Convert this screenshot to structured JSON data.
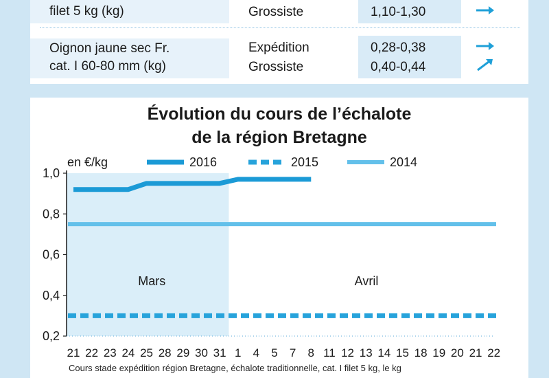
{
  "table": {
    "rows": [
      {
        "label_lines": [
          "filet 5 kg (kg)"
        ],
        "stades": [
          "Grossiste"
        ],
        "prices": [
          "1,10-1,30"
        ],
        "trends": [
          "stable-arrow-icon"
        ]
      },
      {
        "label_lines": [
          "Oignon jaune sec Fr.",
          "cat. I 60-80 mm (kg)"
        ],
        "stades": [
          "Expédition",
          "Grossiste"
        ],
        "prices": [
          "0,28-0,38",
          "0,40-0,44"
        ],
        "trends": [
          "stable-arrow-icon",
          "up-arrow-icon"
        ]
      }
    ]
  },
  "chart": {
    "title_line1": "Évolution du cours de l’échalote",
    "title_line2": "de la région Bretagne",
    "unit_label": "en €/kg",
    "caption": "Cours stade expédition région Bretagne, échalote traditionnelle, cat. I filet 5 kg, le kg",
    "month_labels": [
      "Mars",
      "Avril"
    ]
  },
  "chart_data": {
    "type": "line",
    "title": "Évolution du cours de l’échalote de la région Bretagne",
    "ylabel": "en €/kg",
    "ylim": [
      0.2,
      1.0
    ],
    "yticks": [
      "0,2",
      "0,4",
      "0,6",
      "0,8",
      "1,0"
    ],
    "ytick_values": [
      0.2,
      0.4,
      0.6,
      0.8,
      1.0
    ],
    "categories": [
      "21",
      "22",
      "23",
      "24",
      "25",
      "28",
      "29",
      "30",
      "31",
      "1",
      "4",
      "5",
      "7",
      "8",
      "11",
      "12",
      "13",
      "14",
      "15",
      "18",
      "19",
      "20",
      "21",
      "22"
    ],
    "legend_position": "top",
    "colors": {
      "2016": "#1b9ad6",
      "2015": "#27a3db",
      "2014": "#63c0ea",
      "shade": "#daeef9"
    },
    "series": [
      {
        "name": "2016",
        "style": "solid-thick",
        "values": [
          0.92,
          0.92,
          0.92,
          0.92,
          0.95,
          0.95,
          0.95,
          0.95,
          0.95,
          0.97,
          0.97,
          0.97,
          0.97,
          0.97,
          null,
          null,
          null,
          null,
          null,
          null,
          null,
          null,
          null,
          null
        ]
      },
      {
        "name": "2015",
        "style": "dashed",
        "values": [
          0.3,
          0.3,
          0.3,
          0.3,
          0.3,
          0.3,
          0.3,
          0.3,
          0.3,
          0.3,
          0.3,
          0.3,
          0.3,
          0.3,
          0.3,
          0.3,
          0.3,
          0.3,
          0.3,
          0.3,
          0.3,
          0.3,
          0.3,
          0.3
        ]
      },
      {
        "name": "2014",
        "style": "solid",
        "values": [
          0.75,
          0.75,
          0.75,
          0.75,
          0.75,
          0.75,
          0.75,
          0.75,
          0.75,
          0.75,
          0.75,
          0.75,
          0.75,
          0.75,
          0.75,
          0.75,
          0.75,
          0.75,
          0.75,
          0.75,
          0.75,
          0.75,
          0.75,
          0.75
        ]
      }
    ]
  }
}
